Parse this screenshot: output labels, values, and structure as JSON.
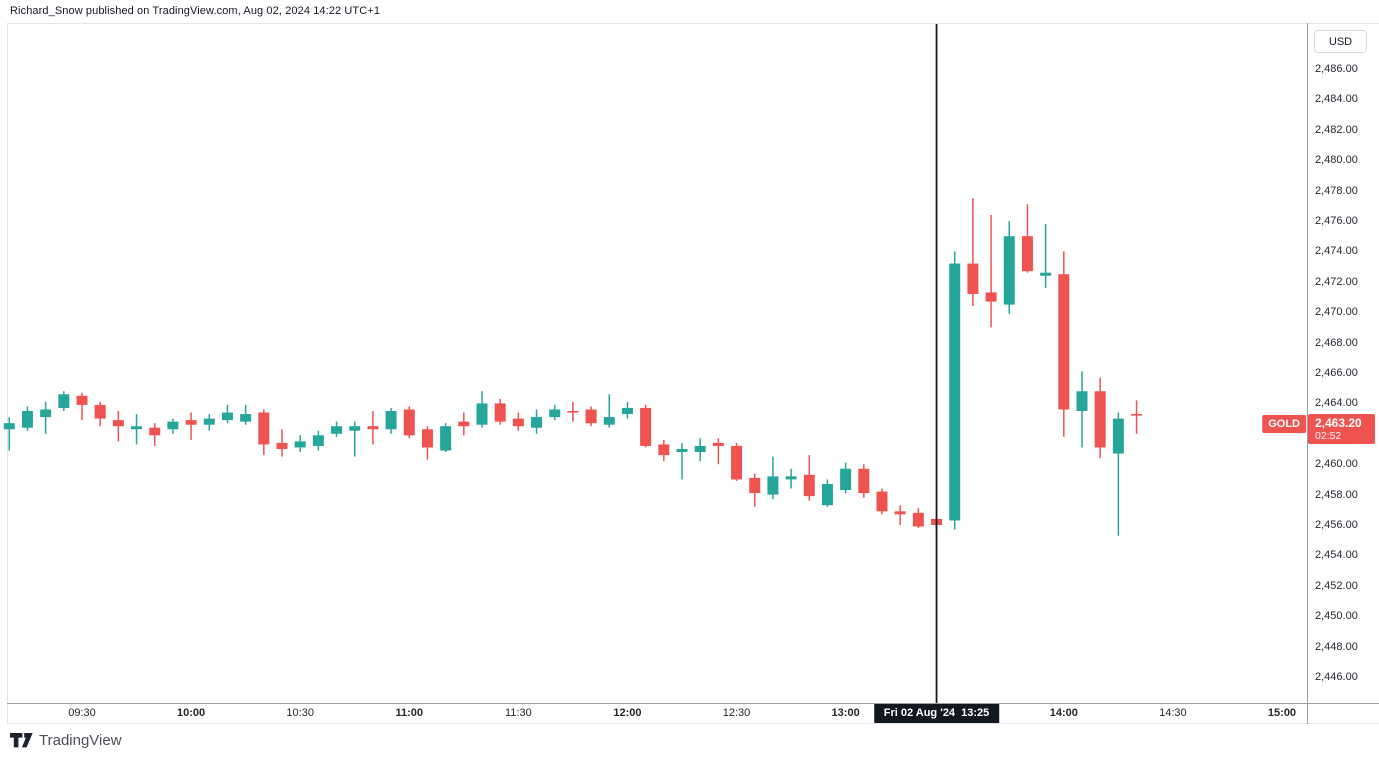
{
  "header": {
    "attribution": "Richard_Snow published on TradingView.com, Aug 02, 2024 14:22 UTC+1"
  },
  "currency_button": {
    "label": "USD"
  },
  "symbol_label": {
    "text": "GOLD"
  },
  "price_label": {
    "price": "2,463.20",
    "countdown": "02:52"
  },
  "crosshair": {
    "time": "13:25",
    "label": "Fri 02 Aug '24  13:25"
  },
  "footer": {
    "brand": "TradingView",
    "logo_icon": "tradingview-tv-mark"
  },
  "colors": {
    "up": "#26A69A",
    "down": "#EF5350",
    "last_price_bg": "#EF5350",
    "crosshair_line": "#17191F",
    "crosshair_label_bg": "#131722",
    "axis_text": "#23262F",
    "divider": "#9B9EA7",
    "frame": "#E3E5EB",
    "background": "#FFFFFF"
  },
  "price_axis": {
    "ticks": [
      {
        "v": 2486,
        "label": "2,486.00"
      },
      {
        "v": 2484,
        "label": "2,484.00"
      },
      {
        "v": 2482,
        "label": "2,482.00"
      },
      {
        "v": 2480,
        "label": "2,480.00"
      },
      {
        "v": 2478,
        "label": "2,478.00"
      },
      {
        "v": 2476,
        "label": "2,476.00"
      },
      {
        "v": 2474,
        "label": "2,474.00"
      },
      {
        "v": 2472,
        "label": "2,472.00"
      },
      {
        "v": 2470,
        "label": "2,470.00"
      },
      {
        "v": 2468,
        "label": "2,468.00"
      },
      {
        "v": 2466,
        "label": "2,466.00"
      },
      {
        "v": 2464,
        "label": "2,464.00"
      },
      {
        "v": 2462,
        "label": "2,462.00"
      },
      {
        "v": 2460,
        "label": "2,460.00"
      },
      {
        "v": 2458,
        "label": "2,458.00"
      },
      {
        "v": 2456,
        "label": "2,456.00"
      },
      {
        "v": 2454,
        "label": "2,454.00"
      },
      {
        "v": 2452,
        "label": "2,452.00"
      },
      {
        "v": 2450,
        "label": "2,450.00"
      },
      {
        "v": 2448,
        "label": "2,448.00"
      },
      {
        "v": 2446,
        "label": "2,446.00"
      }
    ]
  },
  "time_axis": {
    "ticks": [
      {
        "time": "09:30",
        "label": "09:30",
        "bold": false
      },
      {
        "time": "10:00",
        "label": "10:00",
        "bold": true
      },
      {
        "time": "10:30",
        "label": "10:30",
        "bold": false
      },
      {
        "time": "11:00",
        "label": "11:00",
        "bold": true
      },
      {
        "time": "11:30",
        "label": "11:30",
        "bold": false
      },
      {
        "time": "12:00",
        "label": "12:00",
        "bold": true
      },
      {
        "time": "12:30",
        "label": "12:30",
        "bold": false
      },
      {
        "time": "13:00",
        "label": "13:00",
        "bold": true
      },
      {
        "time": "14:00",
        "label": "14:00",
        "bold": true
      },
      {
        "time": "14:30",
        "label": "14:30",
        "bold": false
      },
      {
        "time": "15:00",
        "label": "15:00",
        "bold": true
      }
    ]
  },
  "chart_data": {
    "type": "candlestick",
    "symbol": "GOLD",
    "currency": "USD",
    "interval": "5m",
    "last_price": 2463.2,
    "countdown": "02:52",
    "marked_time": "13:25",
    "ylim": [
      2446,
      2486
    ],
    "x_visible": [
      "09:10",
      "14:20"
    ],
    "grid": false,
    "candles": [
      {
        "t": "09:10",
        "o": 2462.3,
        "h": 2463.1,
        "l": 2460.9,
        "c": 2462.7
      },
      {
        "t": "09:15",
        "o": 2462.4,
        "h": 2463.8,
        "l": 2462.2,
        "c": 2463.5
      },
      {
        "t": "09:20",
        "o": 2463.1,
        "h": 2464.1,
        "l": 2462.0,
        "c": 2463.6
      },
      {
        "t": "09:25",
        "o": 2463.7,
        "h": 2464.8,
        "l": 2463.5,
        "c": 2464.6
      },
      {
        "t": "09:30",
        "o": 2464.5,
        "h": 2464.7,
        "l": 2462.9,
        "c": 2463.9
      },
      {
        "t": "09:35",
        "o": 2463.9,
        "h": 2464.1,
        "l": 2462.5,
        "c": 2463.0
      },
      {
        "t": "09:40",
        "o": 2462.9,
        "h": 2463.5,
        "l": 2461.5,
        "c": 2462.5
      },
      {
        "t": "09:45",
        "o": 2462.3,
        "h": 2463.3,
        "l": 2461.3,
        "c": 2462.5
      },
      {
        "t": "09:50",
        "o": 2462.4,
        "h": 2462.7,
        "l": 2461.2,
        "c": 2461.9
      },
      {
        "t": "09:55",
        "o": 2462.3,
        "h": 2463.0,
        "l": 2462.0,
        "c": 2462.8
      },
      {
        "t": "10:00",
        "o": 2462.9,
        "h": 2463.4,
        "l": 2461.6,
        "c": 2462.6
      },
      {
        "t": "10:05",
        "o": 2462.6,
        "h": 2463.3,
        "l": 2462.2,
        "c": 2463.0
      },
      {
        "t": "10:10",
        "o": 2462.9,
        "h": 2463.9,
        "l": 2462.7,
        "c": 2463.4
      },
      {
        "t": "10:15",
        "o": 2462.8,
        "h": 2463.9,
        "l": 2462.6,
        "c": 2463.3
      },
      {
        "t": "10:20",
        "o": 2463.4,
        "h": 2463.6,
        "l": 2460.6,
        "c": 2461.3
      },
      {
        "t": "10:25",
        "o": 2461.4,
        "h": 2462.3,
        "l": 2460.5,
        "c": 2461.0
      },
      {
        "t": "10:30",
        "o": 2461.1,
        "h": 2461.9,
        "l": 2460.8,
        "c": 2461.5
      },
      {
        "t": "10:35",
        "o": 2461.2,
        "h": 2462.2,
        "l": 2460.9,
        "c": 2461.9
      },
      {
        "t": "10:40",
        "o": 2462.0,
        "h": 2462.8,
        "l": 2461.8,
        "c": 2462.5
      },
      {
        "t": "10:45",
        "o": 2462.2,
        "h": 2462.8,
        "l": 2460.5,
        "c": 2462.5
      },
      {
        "t": "10:50",
        "o": 2462.5,
        "h": 2463.5,
        "l": 2461.3,
        "c": 2462.3
      },
      {
        "t": "10:55",
        "o": 2462.3,
        "h": 2463.7,
        "l": 2462.0,
        "c": 2463.5
      },
      {
        "t": "11:00",
        "o": 2463.6,
        "h": 2463.8,
        "l": 2461.7,
        "c": 2461.9
      },
      {
        "t": "11:05",
        "o": 2462.3,
        "h": 2462.5,
        "l": 2460.3,
        "c": 2461.1
      },
      {
        "t": "11:10",
        "o": 2460.9,
        "h": 2462.7,
        "l": 2460.8,
        "c": 2462.5
      },
      {
        "t": "11:15",
        "o": 2462.8,
        "h": 2463.4,
        "l": 2461.9,
        "c": 2462.5
      },
      {
        "t": "11:20",
        "o": 2462.6,
        "h": 2464.8,
        "l": 2462.4,
        "c": 2464.0
      },
      {
        "t": "11:25",
        "o": 2464.0,
        "h": 2464.3,
        "l": 2462.6,
        "c": 2462.8
      },
      {
        "t": "11:30",
        "o": 2463.0,
        "h": 2463.4,
        "l": 2462.2,
        "c": 2462.5
      },
      {
        "t": "11:35",
        "o": 2462.4,
        "h": 2463.6,
        "l": 2462.0,
        "c": 2463.1
      },
      {
        "t": "11:40",
        "o": 2463.1,
        "h": 2463.9,
        "l": 2462.9,
        "c": 2463.6
      },
      {
        "t": "11:45",
        "o": 2463.5,
        "h": 2464.1,
        "l": 2462.8,
        "c": 2463.4
      },
      {
        "t": "11:50",
        "o": 2463.6,
        "h": 2463.8,
        "l": 2462.5,
        "c": 2462.7
      },
      {
        "t": "11:55",
        "o": 2462.6,
        "h": 2464.6,
        "l": 2462.4,
        "c": 2463.1
      },
      {
        "t": "12:00",
        "o": 2463.3,
        "h": 2464.1,
        "l": 2463.0,
        "c": 2463.7
      },
      {
        "t": "12:05",
        "o": 2463.7,
        "h": 2463.9,
        "l": 2461.1,
        "c": 2461.2
      },
      {
        "t": "12:10",
        "o": 2461.3,
        "h": 2461.6,
        "l": 2460.2,
        "c": 2460.6
      },
      {
        "t": "12:15",
        "o": 2460.8,
        "h": 2461.4,
        "l": 2459.0,
        "c": 2461.0
      },
      {
        "t": "12:20",
        "o": 2460.8,
        "h": 2461.7,
        "l": 2460.2,
        "c": 2461.2
      },
      {
        "t": "12:25",
        "o": 2461.4,
        "h": 2461.7,
        "l": 2460.0,
        "c": 2461.2
      },
      {
        "t": "12:30",
        "o": 2461.2,
        "h": 2461.4,
        "l": 2458.9,
        "c": 2459.0
      },
      {
        "t": "12:35",
        "o": 2459.1,
        "h": 2459.4,
        "l": 2457.2,
        "c": 2458.1
      },
      {
        "t": "12:40",
        "o": 2458.0,
        "h": 2460.5,
        "l": 2457.7,
        "c": 2459.2
      },
      {
        "t": "12:45",
        "o": 2459.0,
        "h": 2459.7,
        "l": 2458.4,
        "c": 2459.2
      },
      {
        "t": "12:50",
        "o": 2459.3,
        "h": 2460.6,
        "l": 2457.6,
        "c": 2457.9
      },
      {
        "t": "12:55",
        "o": 2457.3,
        "h": 2459.0,
        "l": 2457.2,
        "c": 2458.7
      },
      {
        "t": "13:00",
        "o": 2458.3,
        "h": 2460.1,
        "l": 2458.1,
        "c": 2459.7
      },
      {
        "t": "13:05",
        "o": 2459.7,
        "h": 2460.0,
        "l": 2457.8,
        "c": 2458.1
      },
      {
        "t": "13:10",
        "o": 2458.2,
        "h": 2458.4,
        "l": 2456.7,
        "c": 2456.9
      },
      {
        "t": "13:15",
        "o": 2456.9,
        "h": 2457.3,
        "l": 2456.0,
        "c": 2456.7
      },
      {
        "t": "13:20",
        "o": 2456.8,
        "h": 2457.1,
        "l": 2455.8,
        "c": 2455.9
      },
      {
        "t": "13:25",
        "o": 2456.4,
        "h": 2456.6,
        "l": 2455.7,
        "c": 2456.0
      },
      {
        "t": "13:30",
        "o": 2456.3,
        "h": 2474.0,
        "l": 2455.7,
        "c": 2473.2
      },
      {
        "t": "13:35",
        "o": 2473.2,
        "h": 2477.5,
        "l": 2470.4,
        "c": 2471.2
      },
      {
        "t": "13:40",
        "o": 2471.3,
        "h": 2476.4,
        "l": 2469.0,
        "c": 2470.7
      },
      {
        "t": "13:45",
        "o": 2470.5,
        "h": 2476.0,
        "l": 2469.9,
        "c": 2475.0
      },
      {
        "t": "13:50",
        "o": 2475.0,
        "h": 2477.1,
        "l": 2472.6,
        "c": 2472.7
      },
      {
        "t": "13:55",
        "o": 2472.4,
        "h": 2475.8,
        "l": 2471.6,
        "c": 2472.6
      },
      {
        "t": "14:00",
        "o": 2472.5,
        "h": 2474.0,
        "l": 2461.8,
        "c": 2463.6
      },
      {
        "t": "14:05",
        "o": 2463.5,
        "h": 2466.1,
        "l": 2461.1,
        "c": 2464.8
      },
      {
        "t": "14:10",
        "o": 2464.8,
        "h": 2465.7,
        "l": 2460.4,
        "c": 2461.1
      },
      {
        "t": "14:15",
        "o": 2460.7,
        "h": 2463.4,
        "l": 2455.3,
        "c": 2463.0
      },
      {
        "t": "14:20",
        "o": 2463.3,
        "h": 2464.2,
        "l": 2462.0,
        "c": 2463.2
      }
    ]
  }
}
